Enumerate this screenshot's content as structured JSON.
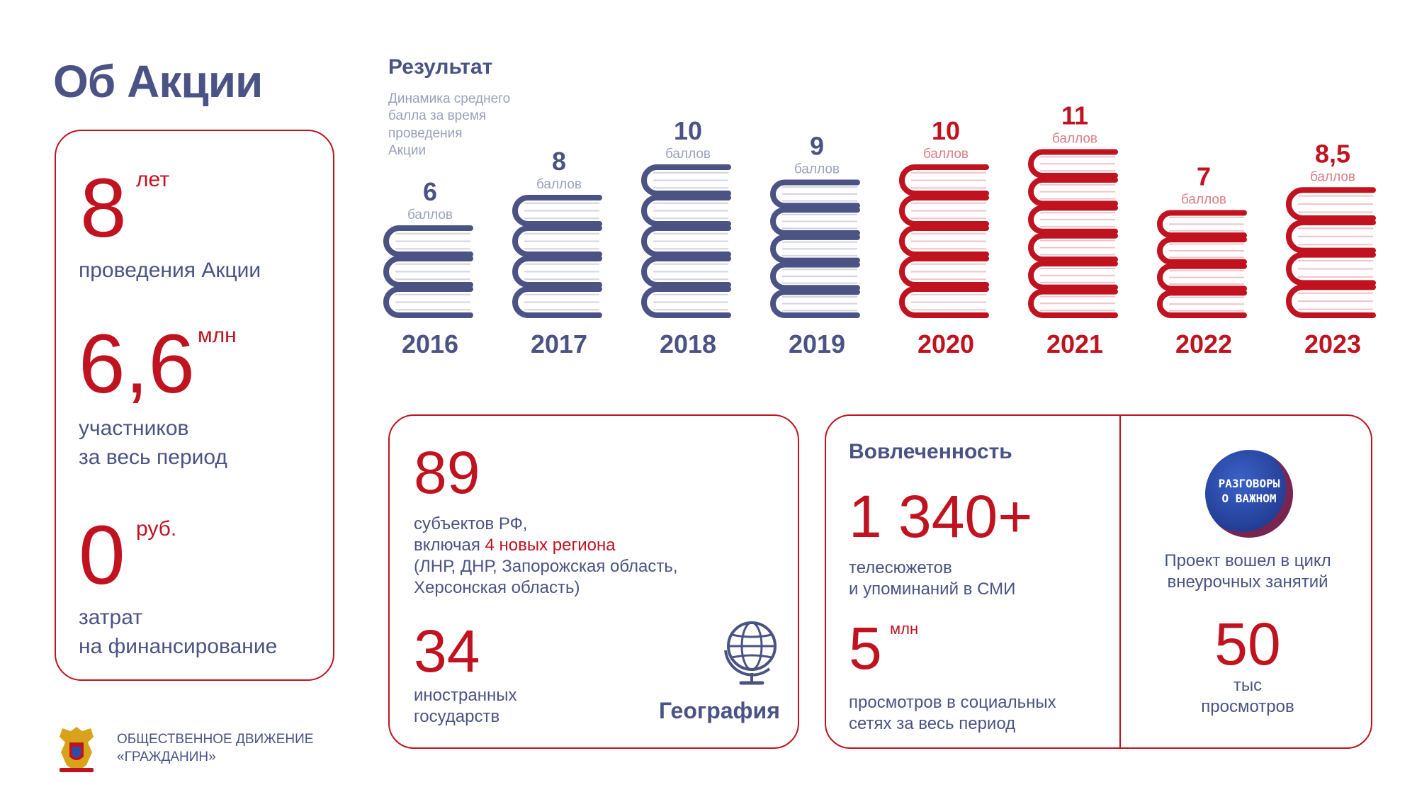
{
  "title": "Об Акции",
  "left_stats": {
    "years": {
      "value": "8",
      "unit": "лет",
      "label": "проведения Акции"
    },
    "participants": {
      "value": "6,6",
      "unit": "млн",
      "label_line1": "участников",
      "label_line2": "за весь период"
    },
    "costs": {
      "value": "0",
      "unit": "руб.",
      "label_line1": "затрат",
      "label_line2": "на финансирование"
    }
  },
  "result": {
    "title": "Результат",
    "subtitle_lines": [
      "Динамика среднего",
      "балла за время",
      "проведения",
      "Акции"
    ],
    "unit": "баллов"
  },
  "chart_data": {
    "type": "bar",
    "categories": [
      "2016",
      "2017",
      "2018",
      "2019",
      "2020",
      "2021",
      "2022",
      "2023"
    ],
    "values": [
      6,
      8,
      10,
      9,
      10,
      11,
      7,
      8.5
    ],
    "value_labels": [
      "6",
      "8",
      "10",
      "9",
      "10",
      "11",
      "7",
      "8,5"
    ],
    "colors": [
      "#4a5384",
      "#4a5384",
      "#4a5384",
      "#4a5384",
      "#c0121f",
      "#c0121f",
      "#c0121f",
      "#c0121f"
    ]
  },
  "geography": {
    "regions_value": "89",
    "regions_line1": "субъектов РФ,",
    "regions_line2_prefix": "включая ",
    "regions_line2_highlight": "4 новых региона",
    "regions_line3": "(ЛНР, ДНР, Запорожская область,",
    "regions_line4": "Херсонская область)",
    "countries_value": "34",
    "countries_line1": "иностранных",
    "countries_line2": "государств",
    "label": "География",
    "icon": "globe-icon"
  },
  "engagement": {
    "title": "Вовлеченность",
    "media_value": "1 340+",
    "media_line1": "телесюжетов",
    "media_line2": "и упоминаний в СМИ",
    "views_value": "5",
    "views_unit": "млн",
    "views_line1": "просмотров в социальных",
    "views_line2": "сетях за весь период"
  },
  "project": {
    "logo_line1": "РАЗГОВОРЫ",
    "logo_line2": "О ВАЖНОМ",
    "text_line1": "Проект вошел в цикл",
    "text_line2": "внеурочных занятий",
    "value": "50",
    "unit": "тыс",
    "unit_label": "просмотров"
  },
  "footer": {
    "org_line1": "ОБЩЕСТВЕННОЕ ДВИЖЕНИЕ",
    "org_line2": "«ГРАЖДАНИН»",
    "emblem": "coat-of-arms-icon"
  },
  "colors": {
    "red": "#c0121f",
    "blue": "#4a5384",
    "gray": "#9aa0bd"
  }
}
